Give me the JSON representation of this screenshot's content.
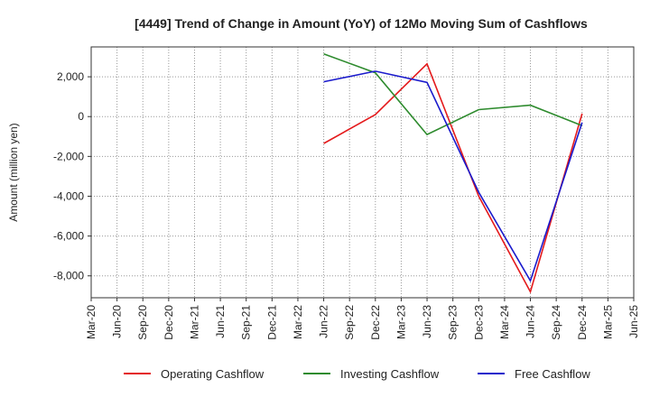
{
  "chart_data": {
    "type": "line",
    "title": "[4449]  Trend of Change in Amount (YoY) of 12Mo Moving Sum of Cashflows",
    "ylabel": "Amount (million yen)",
    "xlabel": "",
    "ylim": [
      -9100,
      3500
    ],
    "yticks": [
      2000,
      0,
      -2000,
      -4000,
      -6000,
      -8000
    ],
    "ytick_labels": [
      "2,000",
      "0",
      "-2,000",
      "-4,000",
      "-6,000",
      "-8,000"
    ],
    "categories": [
      "Mar-20",
      "Jun-20",
      "Sep-20",
      "Dec-20",
      "Mar-21",
      "Jun-21",
      "Sep-21",
      "Dec-21",
      "Mar-22",
      "Jun-22",
      "Sep-22",
      "Dec-22",
      "Mar-23",
      "Jun-23",
      "Sep-23",
      "Dec-23",
      "Mar-24",
      "Jun-24",
      "Sep-24",
      "Dec-24",
      "Mar-25",
      "Jun-25"
    ],
    "series": [
      {
        "name": "Operating Cashflow",
        "color": "#e41a1c",
        "values": [
          null,
          null,
          null,
          null,
          null,
          null,
          null,
          null,
          null,
          -1350,
          null,
          100,
          null,
          2650,
          null,
          -4000,
          null,
          -8800,
          null,
          150,
          null,
          null
        ]
      },
      {
        "name": "Investing Cashflow",
        "color": "#2e8b2e",
        "values": [
          null,
          null,
          null,
          null,
          null,
          null,
          null,
          null,
          null,
          3150,
          null,
          2200,
          null,
          -900,
          null,
          350,
          null,
          570,
          null,
          -450,
          null,
          null
        ]
      },
      {
        "name": "Free Cashflow",
        "color": "#1a1acc",
        "values": [
          null,
          null,
          null,
          null,
          null,
          null,
          null,
          null,
          null,
          1750,
          null,
          2280,
          null,
          1720,
          null,
          -3800,
          null,
          -8250,
          null,
          -300,
          null,
          null
        ]
      }
    ]
  }
}
